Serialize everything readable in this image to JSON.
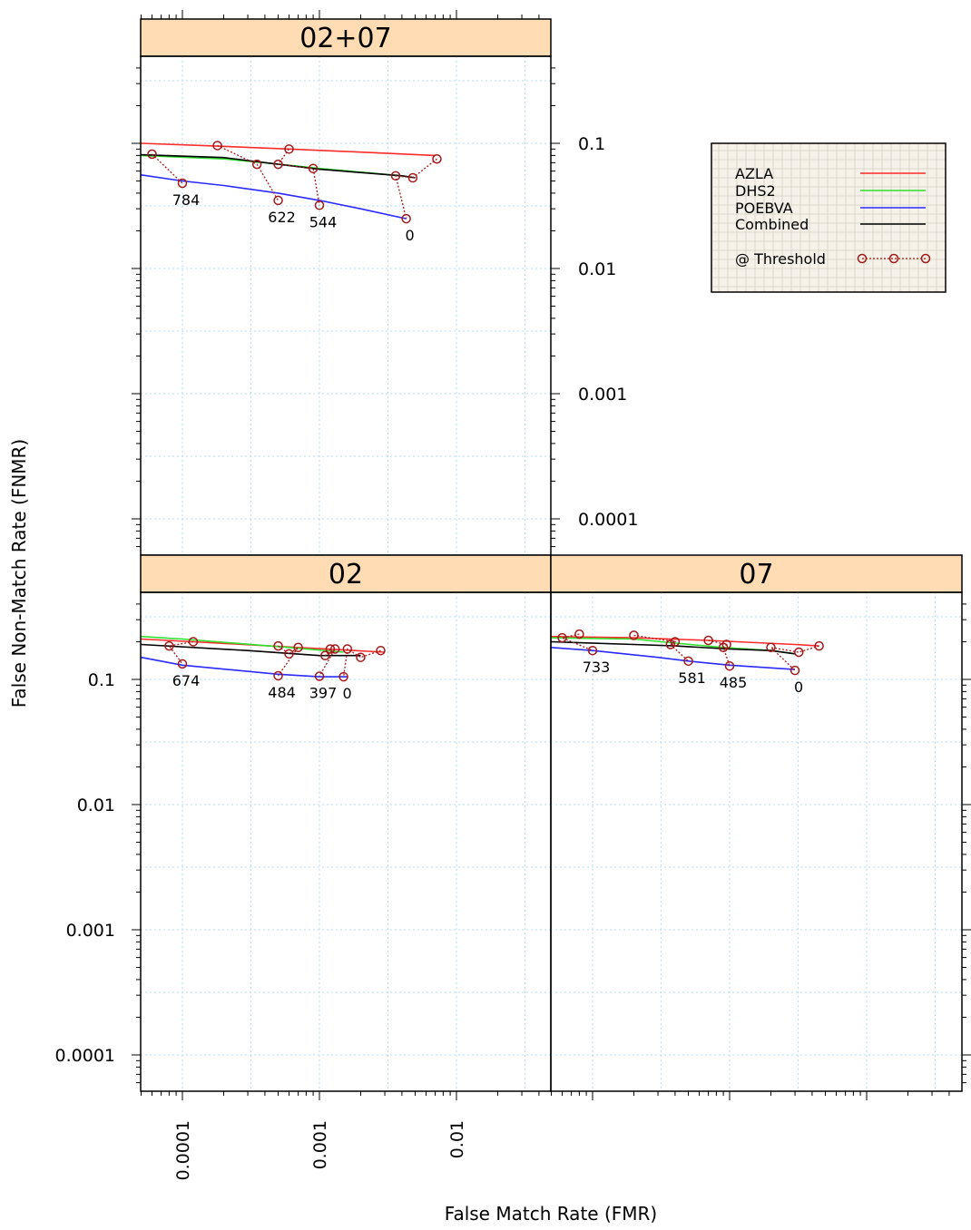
{
  "chart_data": {
    "type": "line",
    "x_scale": "log",
    "y_scale": "log",
    "xlabel": "False Match Rate (FMR)",
    "ylabel": "False Non-Match Rate (FNMR)",
    "xlim": [
      5e-05,
      0.05
    ],
    "ylim": [
      5e-05,
      0.5
    ],
    "x_ticks": [
      0.0001,
      0.001,
      0.01
    ],
    "x_tick_labels": [
      "0.0001",
      "0.001",
      "0.01"
    ],
    "y_ticks": [
      0.1,
      0.01,
      0.001,
      0.0001
    ],
    "y_tick_labels": [
      "0.1",
      "0.01",
      "0.001",
      "0.0001"
    ],
    "grid": true,
    "colors": {
      "AZLA": "#ff2a2a",
      "DHS2": "#2ee02e",
      "POEBVA": "#2a2aff",
      "Combined": "#000000",
      "threshold": "#a01818",
      "strip": "#ffdcb4",
      "grid": "#b4dcf0"
    },
    "legend": {
      "placement": "right",
      "entries": [
        {
          "label": "AZLA",
          "color": "#ff2a2a"
        },
        {
          "label": "DHS2",
          "color": "#2ee02e"
        },
        {
          "label": "POEBVA",
          "color": "#2a2aff"
        },
        {
          "label": "Combined",
          "color": "#000000"
        },
        {
          "label": "@ Threshold",
          "color": "#a01818"
        }
      ]
    },
    "panels": [
      {
        "title": "02+07",
        "series": [
          {
            "name": "AZLA",
            "points": [
              [
                5e-05,
                0.1
              ],
              [
                0.00018,
                0.095
              ],
              [
                0.0006,
                0.09
              ],
              [
                0.002,
                0.085
              ],
              [
                0.007,
                0.08
              ]
            ]
          },
          {
            "name": "DHS2",
            "points": [
              [
                5e-05,
                0.08
              ],
              [
                0.0002,
                0.075
              ],
              [
                0.0004,
                0.07
              ],
              [
                0.001,
                0.063
              ],
              [
                0.004,
                0.055
              ],
              [
                0.005,
                0.053
              ]
            ]
          },
          {
            "name": "POEBVA",
            "points": [
              [
                5e-05,
                0.056
              ],
              [
                0.0001,
                0.05
              ],
              [
                0.0002,
                0.046
              ],
              [
                0.0005,
                0.04
              ],
              [
                0.001,
                0.035
              ],
              [
                0.002,
                0.03
              ],
              [
                0.0043,
                0.025
              ]
            ]
          },
          {
            "name": "Combined",
            "points": [
              [
                5e-05,
                0.081
              ],
              [
                0.0002,
                0.077
              ],
              [
                0.0005,
                0.068
              ],
              [
                0.001,
                0.062
              ],
              [
                0.004,
                0.055
              ],
              [
                0.005,
                0.053
              ]
            ]
          }
        ],
        "thresholds": [
          {
            "label": "784",
            "points": [
              [
                6e-05,
                0.082
              ],
              [
                0.0001,
                0.048
              ]
            ]
          },
          {
            "label": "622",
            "points": [
              [
                0.00018,
                0.096
              ],
              [
                0.00035,
                0.068
              ],
              [
                0.0005,
                0.035
              ]
            ]
          },
          {
            "label": "544",
            "points": [
              [
                0.0006,
                0.09
              ],
              [
                0.0005,
                0.068
              ],
              [
                0.0009,
                0.063
              ],
              [
                0.001,
                0.032
              ]
            ]
          },
          {
            "label": "0",
            "points": [
              [
                0.0072,
                0.075
              ],
              [
                0.0048,
                0.053
              ],
              [
                0.0036,
                0.055
              ],
              [
                0.0043,
                0.025
              ]
            ]
          }
        ]
      },
      {
        "title": "02",
        "series": [
          {
            "name": "AZLA",
            "points": [
              [
                5e-05,
                0.21
              ],
              [
                0.00012,
                0.2
              ],
              [
                0.0007,
                0.18
              ],
              [
                0.003,
                0.165
              ]
            ]
          },
          {
            "name": "DHS2",
            "points": [
              [
                5e-05,
                0.22
              ],
              [
                0.0001,
                0.21
              ],
              [
                0.0006,
                0.18
              ],
              [
                0.0015,
                0.165
              ]
            ]
          },
          {
            "name": "POEBVA",
            "points": [
              [
                5e-05,
                0.15
              ],
              [
                0.0001,
                0.13
              ],
              [
                0.0005,
                0.11
              ],
              [
                0.001,
                0.105
              ],
              [
                0.0016,
                0.105
              ]
            ]
          },
          {
            "name": "Combined",
            "points": [
              [
                5e-05,
                0.19
              ],
              [
                0.0003,
                0.17
              ],
              [
                0.001,
                0.155
              ],
              [
                0.002,
                0.155
              ]
            ]
          }
        ],
        "thresholds": [
          {
            "label": "674",
            "points": [
              [
                0.00012,
                0.2
              ],
              [
                8e-05,
                0.185
              ],
              [
                0.0001,
                0.133
              ]
            ]
          },
          {
            "label": "484",
            "points": [
              [
                0.0005,
                0.185
              ],
              [
                0.0006,
                0.16
              ],
              [
                0.0007,
                0.18
              ],
              [
                0.0005,
                0.107
              ]
            ]
          },
          {
            "label": "397",
            "points": [
              [
                0.0012,
                0.175
              ],
              [
                0.0011,
                0.155
              ],
              [
                0.0013,
                0.175
              ],
              [
                0.001,
                0.106
              ]
            ]
          },
          {
            "label": "0",
            "points": [
              [
                0.0028,
                0.17
              ],
              [
                0.002,
                0.15
              ],
              [
                0.0016,
                0.175
              ],
              [
                0.0015,
                0.105
              ]
            ]
          }
        ]
      },
      {
        "title": "07",
        "series": [
          {
            "name": "AZLA",
            "points": [
              [
                5e-05,
                0.22
              ],
              [
                0.0002,
                0.215
              ],
              [
                0.0007,
                0.205
              ],
              [
                0.003,
                0.19
              ],
              [
                0.0045,
                0.185
              ]
            ]
          },
          {
            "name": "DHS2",
            "points": [
              [
                5e-05,
                0.215
              ],
              [
                0.0002,
                0.21
              ],
              [
                0.0004,
                0.195
              ],
              [
                0.0009,
                0.18
              ],
              [
                0.002,
                0.17
              ],
              [
                0.003,
                0.16
              ]
            ]
          },
          {
            "name": "POEBVA",
            "points": [
              [
                5e-05,
                0.18
              ],
              [
                0.0001,
                0.17
              ],
              [
                0.0003,
                0.15
              ],
              [
                0.0005,
                0.14
              ],
              [
                0.001,
                0.13
              ],
              [
                0.003,
                0.12
              ]
            ]
          },
          {
            "name": "Combined",
            "points": [
              [
                5e-05,
                0.2
              ],
              [
                0.0002,
                0.19
              ],
              [
                0.0004,
                0.185
              ],
              [
                0.001,
                0.175
              ],
              [
                0.002,
                0.17
              ],
              [
                0.003,
                0.16
              ]
            ]
          }
        ],
        "thresholds": [
          {
            "label": "733",
            "points": [
              [
                8e-05,
                0.23
              ],
              [
                6e-05,
                0.215
              ],
              [
                0.0001,
                0.17
              ]
            ]
          },
          {
            "label": "581",
            "points": [
              [
                0.0002,
                0.225
              ],
              [
                0.0004,
                0.2
              ],
              [
                0.00037,
                0.19
              ],
              [
                0.0005,
                0.14
              ]
            ]
          },
          {
            "label": "485",
            "points": [
              [
                0.0007,
                0.205
              ],
              [
                0.00095,
                0.19
              ],
              [
                0.0009,
                0.18
              ],
              [
                0.001,
                0.128
              ]
            ]
          },
          {
            "label": "0",
            "points": [
              [
                0.0045,
                0.185
              ],
              [
                0.0032,
                0.165
              ],
              [
                0.002,
                0.18
              ],
              [
                0.003,
                0.118
              ]
            ]
          }
        ]
      }
    ]
  }
}
